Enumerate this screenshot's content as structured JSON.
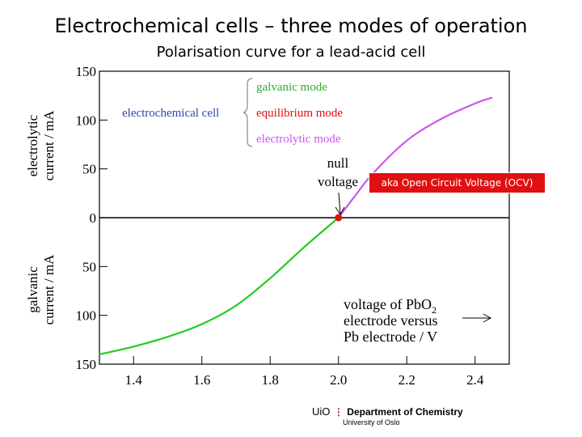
{
  "header": {
    "title": "Electrochemical cells – three modes of operation",
    "subtitle": "Polarisation curve for a lead-acid cell"
  },
  "chart_data": {
    "type": "line",
    "xlim": [
      1.3,
      2.5
    ],
    "ylim": [
      -150,
      150
    ],
    "x_ticks": [
      {
        "value": 1.4,
        "label": "1.4"
      },
      {
        "value": 1.6,
        "label": "1.6"
      },
      {
        "value": 1.8,
        "label": "1.8"
      },
      {
        "value": 2.0,
        "label": "2.0"
      },
      {
        "value": 2.2,
        "label": "2.2"
      },
      {
        "value": 2.4,
        "label": "2.4"
      }
    ],
    "y_ticks": [
      {
        "value": 150,
        "label": "150"
      },
      {
        "value": 100,
        "label": "100"
      },
      {
        "value": 50,
        "label": "50"
      },
      {
        "value": 0,
        "label": "0"
      },
      {
        "value": -50,
        "label": "50"
      },
      {
        "value": -100,
        "label": "100"
      },
      {
        "value": -150,
        "label": "150"
      }
    ],
    "ylabel_top": [
      "electrolytic",
      "current / mA"
    ],
    "ylabel_bottom": [
      "galvanic",
      "current / mA"
    ],
    "xlabel": [
      "voltage of PbO",
      "2",
      "electrode versus",
      "Pb electrode / V"
    ],
    "series": [
      {
        "color": "#22cc22",
        "x": [
          1.3,
          1.4,
          1.5,
          1.6,
          1.7,
          1.8,
          1.9,
          2.0
        ],
        "y": [
          -140,
          -132,
          -122,
          -109,
          -90,
          -62,
          -30,
          0
        ]
      },
      {
        "color": "#cc55ee",
        "x": [
          2.0,
          2.05,
          2.1,
          2.2,
          2.3,
          2.4,
          2.45
        ],
        "y": [
          0,
          23,
          45,
          79,
          101,
          117,
          123
        ]
      }
    ],
    "null_point": {
      "x": 2.0,
      "y": 0,
      "color": "#e01010"
    },
    "annotations": {
      "null_label": [
        "null",
        "voltage"
      ],
      "ocv_note": "aka Open Circuit Voltage (OCV)",
      "cell_label": "electrochemical cell",
      "modes": [
        {
          "label": "galvanic mode",
          "color": "#33aa33"
        },
        {
          "label": "equilibrium mode",
          "color": "#e01010"
        },
        {
          "label": "electrolytic mode",
          "color": "#cc55ee"
        }
      ],
      "cell_label_color": "#3344aa"
    }
  },
  "footer": {
    "uio": "UiO",
    "department": "Department of Chemistry",
    "university": "University of Oslo"
  }
}
